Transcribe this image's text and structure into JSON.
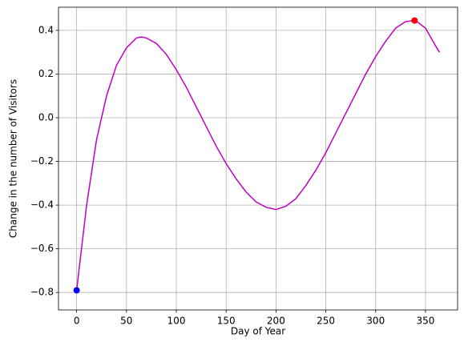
{
  "chart_data": {
    "type": "line",
    "xlabel": "Day of Year",
    "ylabel": "Change in the number of Visitors",
    "xlim": [
      -18.2,
      382.2
    ],
    "ylim": [
      -0.88,
      0.506
    ],
    "xticks": [
      0,
      50,
      100,
      150,
      200,
      250,
      300,
      350
    ],
    "yticks": [
      {
        "value": -0.8,
        "label": "−0.8"
      },
      {
        "value": -0.6,
        "label": "−0.6"
      },
      {
        "value": -0.4,
        "label": "−0.4"
      },
      {
        "value": -0.2,
        "label": "−0.2"
      },
      {
        "value": 0,
        "label": "0.0"
      },
      0.2,
      0.4
    ],
    "grid": true,
    "series": [
      {
        "color": "#bf00bf",
        "x": [
          0,
          10,
          20,
          30,
          40,
          50,
          60,
          65,
          70,
          80,
          90,
          100,
          110,
          120,
          130,
          140,
          150,
          160,
          170,
          180,
          190,
          200,
          210,
          220,
          230,
          240,
          250,
          260,
          270,
          280,
          290,
          300,
          310,
          320,
          330,
          340,
          350,
          360,
          364
        ],
        "values": [
          -0.79,
          -0.4,
          -0.1,
          0.1,
          0.24,
          0.32,
          0.365,
          0.37,
          0.365,
          0.34,
          0.29,
          0.22,
          0.14,
          0.05,
          -0.04,
          -0.13,
          -0.21,
          -0.28,
          -0.34,
          -0.385,
          -0.41,
          -0.42,
          -0.405,
          -0.37,
          -0.31,
          -0.24,
          -0.16,
          -0.07,
          0.02,
          0.11,
          0.2,
          0.28,
          0.35,
          0.41,
          0.44,
          0.445,
          0.41,
          0.33,
          0.3
        ]
      }
    ],
    "markers": [
      {
        "x": 0,
        "y": -0.79,
        "color": "#0000ff"
      },
      {
        "x": 339,
        "y": 0.445,
        "color": "#ff0000"
      }
    ]
  }
}
